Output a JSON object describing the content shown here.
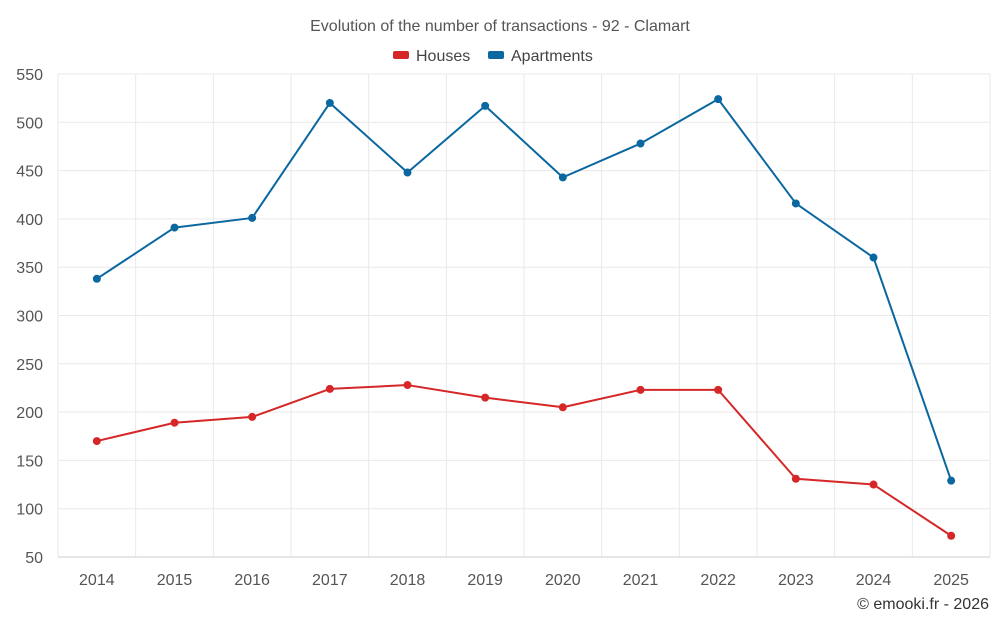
{
  "chart_data": {
    "type": "line",
    "title": "Evolution of the number of transactions - 92 - Clamart",
    "categories": [
      "2014",
      "2015",
      "2016",
      "2017",
      "2018",
      "2019",
      "2020",
      "2021",
      "2022",
      "2023",
      "2024",
      "2025"
    ],
    "series": [
      {
        "name": "Houses",
        "color": "#d62728",
        "values": [
          170,
          189,
          195,
          224,
          228,
          215,
          205,
          223,
          223,
          131,
          125,
          72
        ]
      },
      {
        "name": "Apartments",
        "color": "#0b67a0",
        "values": [
          338,
          391,
          401,
          520,
          448,
          517,
          443,
          478,
          524,
          416,
          360,
          129
        ]
      }
    ],
    "ylim": [
      50,
      550
    ],
    "yticks": [
      50,
      100,
      150,
      200,
      250,
      300,
      350,
      400,
      450,
      500,
      550
    ],
    "xlabel": "",
    "ylabel": "",
    "grid": true,
    "legend_position": "top-center"
  },
  "credit": "© emooki.fr - 2026"
}
